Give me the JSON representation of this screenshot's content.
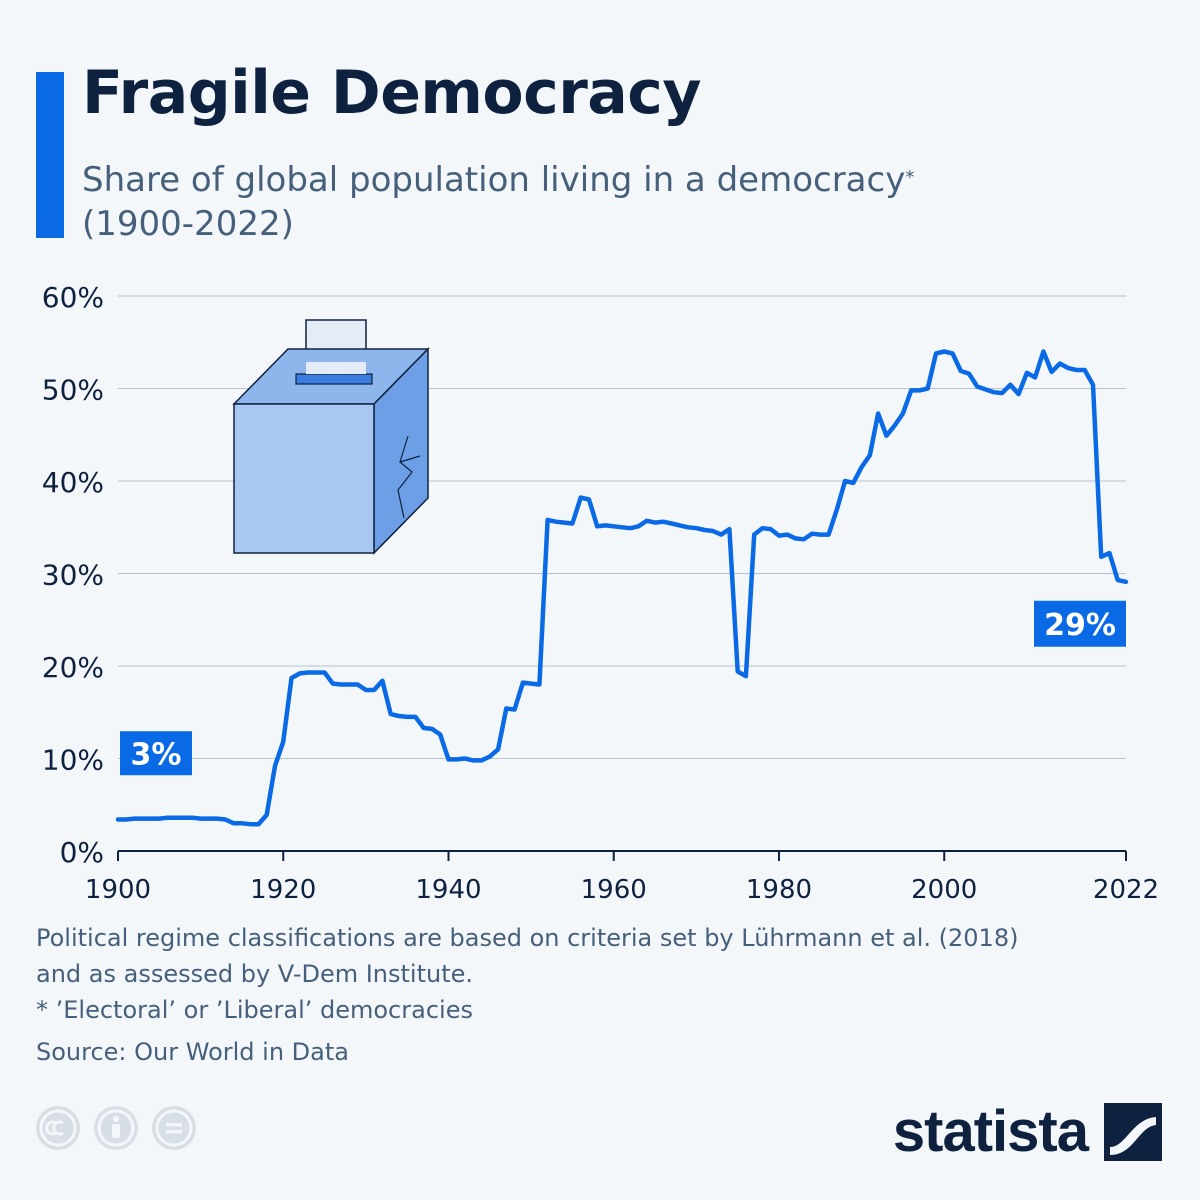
{
  "header": {
    "title": "Fragile Democracy",
    "subtitle_line1": "Share of global population living in a democracy",
    "subtitle_marker": "*",
    "subtitle_line2": "(1900-2022)"
  },
  "chart_data": {
    "type": "line",
    "title": "Fragile Democracy",
    "subtitle": "Share of global population living in a democracy* (1900-2022)",
    "xlabel": "",
    "ylabel": "",
    "xlim": [
      1900,
      2022
    ],
    "ylim": [
      0,
      60
    ],
    "x_ticks": [
      "1900",
      "1920",
      "1940",
      "1960",
      "1980",
      "2000",
      "2022"
    ],
    "x_tick_values": [
      1900,
      1920,
      1940,
      1960,
      1980,
      2000,
      2022
    ],
    "y_ticks": [
      "0%",
      "10%",
      "20%",
      "30%",
      "40%",
      "50%",
      "60%"
    ],
    "y_tick_values": [
      0,
      10,
      20,
      30,
      40,
      50,
      60
    ],
    "grid": true,
    "color": "#0a6ae6",
    "series": [
      {
        "name": "Share of global population living in a democracy",
        "x": [
          1900,
          1901,
          1902,
          1903,
          1904,
          1905,
          1906,
          1907,
          1908,
          1909,
          1910,
          1911,
          1912,
          1913,
          1914,
          1915,
          1916,
          1917,
          1918,
          1919,
          1920,
          1921,
          1922,
          1923,
          1924,
          1925,
          1926,
          1927,
          1928,
          1929,
          1930,
          1931,
          1932,
          1933,
          1934,
          1935,
          1936,
          1937,
          1938,
          1939,
          1940,
          1941,
          1942,
          1943,
          1944,
          1945,
          1946,
          1947,
          1948,
          1949,
          1950,
          1951,
          1952,
          1953,
          1954,
          1955,
          1956,
          1957,
          1958,
          1959,
          1960,
          1961,
          1962,
          1963,
          1964,
          1965,
          1966,
          1967,
          1968,
          1969,
          1970,
          1971,
          1972,
          1973,
          1974,
          1975,
          1976,
          1977,
          1978,
          1979,
          1980,
          1981,
          1982,
          1983,
          1984,
          1985,
          1986,
          1987,
          1988,
          1989,
          1990,
          1991,
          1992,
          1993,
          1994,
          1995,
          1996,
          1997,
          1998,
          1999,
          2000,
          2001,
          2002,
          2003,
          2004,
          2005,
          2006,
          2007,
          2008,
          2009,
          2010,
          2011,
          2012,
          2013,
          2014,
          2015,
          2016,
          2017,
          2018,
          2019,
          2020,
          2021,
          2022
        ],
        "values": [
          3.4,
          3.4,
          3.5,
          3.5,
          3.5,
          3.5,
          3.6,
          3.6,
          3.6,
          3.6,
          3.5,
          3.5,
          3.5,
          3.4,
          3.0,
          3.0,
          2.9,
          2.9,
          3.9,
          9.2,
          11.8,
          18.7,
          19.2,
          19.3,
          19.3,
          19.3,
          18.1,
          18.0,
          18.0,
          18.0,
          17.4,
          17.4,
          18.4,
          14.8,
          14.6,
          14.5,
          14.5,
          13.3,
          13.2,
          12.6,
          9.9,
          9.9,
          10.0,
          9.8,
          9.8,
          10.2,
          11.0,
          15.4,
          15.3,
          18.2,
          18.1,
          18.0,
          35.8,
          35.6,
          35.5,
          35.4,
          38.2,
          38.0,
          35.1,
          35.2,
          35.1,
          35.0,
          34.9,
          35.1,
          35.7,
          35.5,
          35.6,
          35.4,
          35.2,
          35.0,
          34.9,
          34.7,
          34.6,
          34.2,
          34.8,
          19.4,
          18.9,
          34.2,
          34.9,
          34.8,
          34.1,
          34.2,
          33.8,
          33.7,
          34.3,
          34.2,
          34.2,
          36.9,
          40.0,
          39.8,
          41.5,
          42.8,
          47.3,
          44.9,
          46.0,
          47.3,
          49.8,
          49.8,
          50.0,
          53.8,
          54.0,
          53.8,
          51.9,
          51.6,
          50.2,
          49.9,
          49.6,
          49.5,
          50.4,
          49.4,
          51.7,
          51.2,
          54.0,
          51.8,
          52.7,
          52.2,
          52.0,
          52.0,
          50.4,
          31.8,
          32.2,
          29.3,
          29.1
        ]
      }
    ],
    "annotations": [
      {
        "x": 1900,
        "y": 3,
        "label": "3%"
      },
      {
        "x": 2022,
        "y": 29,
        "label": "29%"
      }
    ]
  },
  "footer": {
    "note_line1": "Political regime classifications are based on criteria set by Lührmann et al. (2018)",
    "note_line2": "and as assessed by V-Dem Institute.",
    "note_line3": "* ’Electoral’ or ’Liberal’ democracies",
    "source": "Source: Our World in Data",
    "brand": "statista"
  },
  "icons": [
    "ballot-box-icon",
    "cc-license-icon",
    "attribution-icon",
    "no-derivatives-icon",
    "statista-logo-icon"
  ]
}
